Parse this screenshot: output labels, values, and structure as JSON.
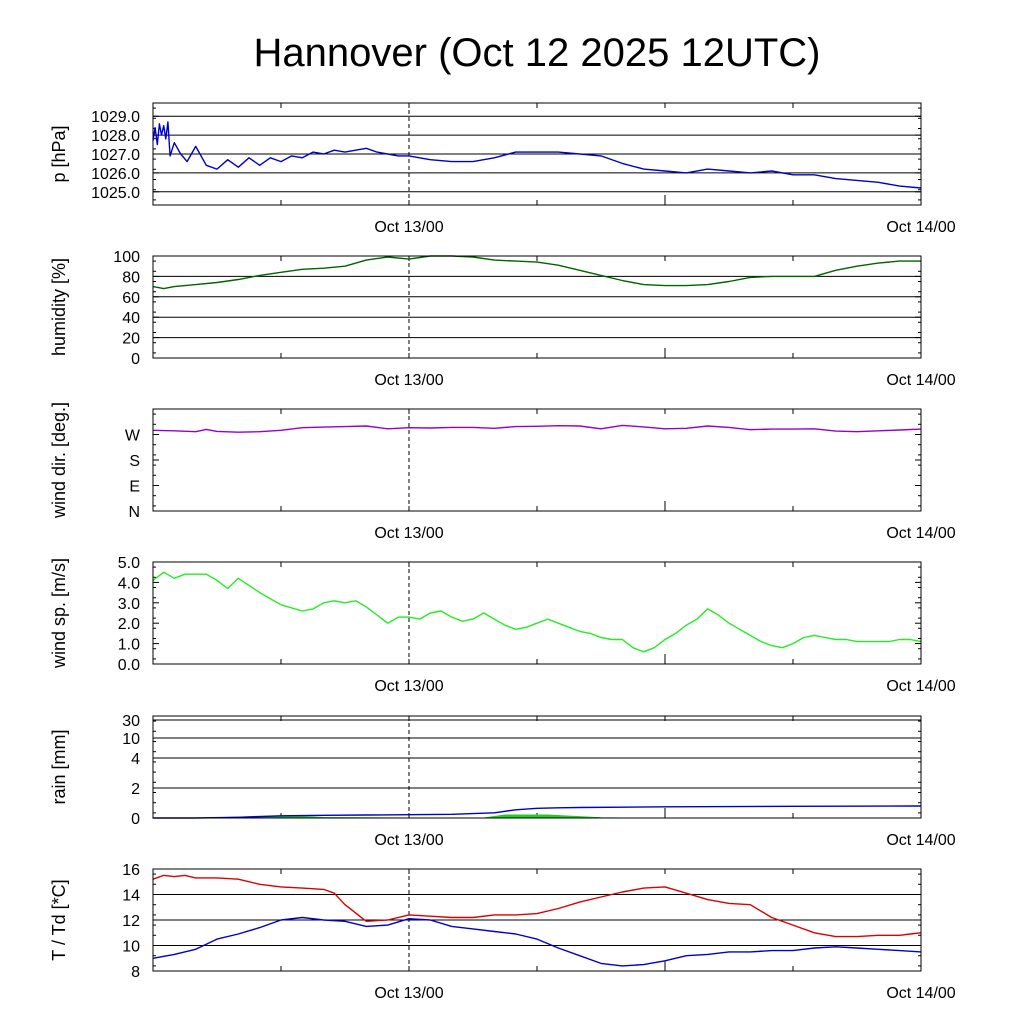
{
  "title": "Hannover (Oct 12 2025 12UTC)",
  "x_tick_labels": [
    "Oct 13/00",
    "Oct 14/00"
  ],
  "chart_data": [
    {
      "id": "pressure",
      "type": "line",
      "ylabel": "p [hPa]",
      "ylim": [
        1024.3,
        1029.7
      ],
      "yticks": [
        1025.0,
        1026.0,
        1027.0,
        1028.0,
        1029.0
      ],
      "ytick_labels": [
        "1025.0",
        "1026.0",
        "1027.0",
        "1028.0",
        "1029.0"
      ],
      "grid": true,
      "series": [
        {
          "color": "#0000cc",
          "x": [
            0,
            0.1,
            0.2,
            0.3,
            0.4,
            0.5,
            0.6,
            0.7,
            0.8,
            1.0,
            1.3,
            1.6,
            2,
            2.5,
            3,
            3.5,
            4,
            4.5,
            5,
            5.5,
            6,
            6.5,
            7,
            7.5,
            8,
            8.5,
            9,
            9.5,
            10,
            10.5,
            11,
            11.5,
            12,
            13,
            14,
            15,
            16,
            17,
            18,
            19,
            20,
            21,
            22,
            23,
            24,
            25,
            26,
            27,
            28,
            29,
            30,
            31,
            32,
            33,
            34,
            35,
            36
          ],
          "values": [
            1027.7,
            1028.4,
            1027.5,
            1028.6,
            1028.0,
            1028.5,
            1027.8,
            1028.7,
            1026.9,
            1027.6,
            1027.0,
            1026.6,
            1027.4,
            1026.4,
            1026.2,
            1026.7,
            1026.3,
            1026.8,
            1026.4,
            1026.8,
            1026.6,
            1026.9,
            1026.8,
            1027.1,
            1027.0,
            1027.2,
            1027.1,
            1027.2,
            1027.3,
            1027.1,
            1027.0,
            1026.9,
            1026.9,
            1026.7,
            1026.6,
            1026.6,
            1026.8,
            1027.1,
            1027.1,
            1027.1,
            1027.0,
            1026.9,
            1026.5,
            1026.2,
            1026.1,
            1026.0,
            1026.2,
            1026.1,
            1026.0,
            1026.1,
            1025.9,
            1025.9,
            1025.7,
            1025.6,
            1025.5,
            1025.3,
            1025.2
          ]
        }
      ]
    },
    {
      "id": "humidity",
      "type": "line",
      "ylabel": "humidity [%]",
      "ylim": [
        0,
        100
      ],
      "yticks": [
        0,
        20,
        40,
        60,
        80,
        100
      ],
      "ytick_labels": [
        "0",
        "20",
        "40",
        "60",
        "80",
        "100"
      ],
      "grid": true,
      "series": [
        {
          "color": "#006400",
          "x": [
            0,
            0.5,
            1,
            2,
            3,
            4,
            5,
            6,
            7,
            8,
            9,
            10,
            11,
            12,
            13,
            14,
            15,
            16,
            17,
            18,
            19,
            20,
            21,
            22,
            23,
            24,
            25,
            26,
            27,
            28,
            29,
            30,
            31,
            32,
            33,
            34,
            35,
            36
          ],
          "values": [
            70,
            68,
            70,
            72,
            74,
            77,
            81,
            84,
            87,
            88,
            90,
            96,
            99,
            97,
            100,
            100,
            99,
            96,
            95,
            94,
            91,
            86,
            81,
            76,
            72,
            71,
            71,
            72,
            75,
            79,
            80,
            80,
            80,
            86,
            90,
            93,
            95,
            95
          ]
        }
      ]
    },
    {
      "id": "wind_direction",
      "type": "line",
      "ylabel": "wind dir. [deg.]",
      "ylim": [
        0,
        360
      ],
      "yticks": [
        0,
        90,
        180,
        270
      ],
      "ytick_labels": [
        "N",
        "E",
        "S",
        "W"
      ],
      "grid": false,
      "series": [
        {
          "color": "#9400d3",
          "x": [
            0,
            1,
            2,
            2.5,
            3,
            4,
            5,
            6,
            7,
            8,
            9,
            10,
            11,
            12,
            13,
            14,
            15,
            16,
            17,
            18,
            19,
            20,
            21,
            22,
            23,
            24,
            25,
            26,
            27,
            28,
            29,
            30,
            31,
            32,
            33,
            34,
            35,
            36
          ],
          "values": [
            285,
            283,
            280,
            288,
            281,
            278,
            280,
            285,
            294,
            296,
            298,
            300,
            290,
            294,
            293,
            295,
            295,
            292,
            298,
            299,
            301,
            300,
            290,
            302,
            297,
            290,
            292,
            300,
            295,
            287,
            289,
            289,
            290,
            282,
            280,
            283,
            286,
            289
          ]
        }
      ]
    },
    {
      "id": "wind_speed",
      "type": "line",
      "ylabel": "wind sp. [m/s]",
      "ylim": [
        0,
        5
      ],
      "yticks": [
        0,
        1,
        2,
        3,
        4,
        5
      ],
      "ytick_labels": [
        "0.0",
        "1.0",
        "2.0",
        "3.0",
        "4.0",
        "5.0"
      ],
      "grid": false,
      "series": [
        {
          "color": "#22ee22",
          "x": [
            0,
            0.5,
            1,
            1.5,
            2,
            2.5,
            3,
            3.5,
            4,
            5,
            6,
            7,
            7.5,
            8,
            8.5,
            9,
            9.5,
            10,
            10.5,
            11,
            11.5,
            12,
            12.5,
            13,
            13.5,
            14,
            14.5,
            15,
            15.5,
            16,
            16.5,
            17,
            17.5,
            18,
            18.5,
            19,
            19.5,
            20,
            20.5,
            21,
            21.5,
            22,
            22.5,
            23,
            23.5,
            24,
            24.5,
            25,
            25.5,
            26,
            26.5,
            27,
            27.5,
            28,
            28.5,
            29,
            29.5,
            30,
            30.5,
            31,
            31.5,
            32,
            32.5,
            33,
            33.5,
            34,
            34.5,
            35,
            35.5,
            36
          ],
          "values": [
            4.1,
            4.5,
            4.2,
            4.4,
            4.4,
            4.4,
            4.1,
            3.7,
            4.2,
            3.5,
            2.9,
            2.6,
            2.7,
            3.0,
            3.1,
            3.0,
            3.1,
            2.8,
            2.4,
            2.0,
            2.3,
            2.3,
            2.2,
            2.5,
            2.6,
            2.3,
            2.1,
            2.2,
            2.5,
            2.2,
            1.9,
            1.7,
            1.8,
            2.0,
            2.2,
            2.0,
            1.8,
            1.6,
            1.5,
            1.3,
            1.2,
            1.2,
            0.8,
            0.6,
            0.8,
            1.2,
            1.5,
            1.9,
            2.2,
            2.7,
            2.4,
            2.0,
            1.7,
            1.4,
            1.1,
            0.9,
            0.8,
            1.0,
            1.3,
            1.4,
            1.3,
            1.2,
            1.2,
            1.1,
            1.1,
            1.1,
            1.1,
            1.2,
            1.2,
            1.1
          ]
        }
      ]
    },
    {
      "id": "rain",
      "type": "area",
      "ylabel": "rain [mm]",
      "ylim": [
        0,
        30
      ],
      "yticks": [
        0,
        2,
        4,
        10,
        30
      ],
      "ytick_labels": [
        "0",
        "2",
        "4",
        "10",
        "30"
      ],
      "yscale": "nonlinear",
      "grid": true,
      "series": [
        {
          "color": "#22cc22",
          "x": [
            3,
            5,
            7,
            8,
            12,
            15.5,
            16.5,
            18.5,
            21,
            22
          ],
          "values": [
            0.02,
            0.1,
            0.1,
            0.03,
            0,
            0,
            0.2,
            0.2,
            0.02,
            0
          ]
        },
        {
          "color": "#0000cc",
          "x": [
            0,
            2,
            4,
            6,
            8,
            10,
            12,
            14,
            16,
            17,
            18,
            19,
            20,
            24,
            30,
            36
          ],
          "values": [
            0,
            0,
            0.05,
            0.15,
            0.18,
            0.2,
            0.22,
            0.25,
            0.35,
            0.55,
            0.65,
            0.68,
            0.7,
            0.75,
            0.78,
            0.8
          ]
        }
      ]
    },
    {
      "id": "temperature",
      "type": "line",
      "ylabel": "T / Td [*C]",
      "ylim": [
        8,
        16
      ],
      "yticks": [
        8,
        10,
        12,
        14,
        16
      ],
      "ytick_labels": [
        "8",
        "10",
        "12",
        "14",
        "16"
      ],
      "grid": true,
      "series": [
        {
          "color": "#dd0000",
          "x": [
            0,
            0.5,
            1,
            1.5,
            2,
            3,
            4,
            5,
            6,
            7,
            8,
            8.5,
            9,
            10,
            11,
            12,
            13,
            14,
            15,
            16,
            17,
            18,
            19,
            20,
            21,
            22,
            23,
            24,
            25,
            26,
            27,
            28,
            29,
            30,
            31,
            32,
            33,
            34,
            35,
            35.5,
            36
          ],
          "values": [
            15.2,
            15.5,
            15.4,
            15.5,
            15.3,
            15.3,
            15.2,
            14.8,
            14.6,
            14.5,
            14.4,
            14.1,
            13.2,
            11.9,
            12.0,
            12.4,
            12.3,
            12.2,
            12.2,
            12.4,
            12.4,
            12.5,
            12.9,
            13.4,
            13.8,
            14.2,
            14.5,
            14.6,
            14.1,
            13.6,
            13.3,
            13.2,
            12.2,
            11.6,
            11.0,
            10.7,
            10.7,
            10.8,
            10.8,
            10.9,
            11.0
          ]
        },
        {
          "color": "#0000cc",
          "x": [
            0,
            1,
            2,
            3,
            4,
            5,
            6,
            7,
            8,
            9,
            10,
            11,
            12,
            13,
            14,
            15,
            16,
            17,
            18,
            19,
            20,
            21,
            22,
            23,
            24,
            25,
            26,
            27,
            28,
            29,
            30,
            31,
            32,
            33,
            34,
            35,
            36
          ],
          "values": [
            9.0,
            9.3,
            9.7,
            10.5,
            10.9,
            11.4,
            12.0,
            12.2,
            12.0,
            11.9,
            11.5,
            11.6,
            12.1,
            12.0,
            11.5,
            11.3,
            11.1,
            10.9,
            10.5,
            9.8,
            9.2,
            8.6,
            8.4,
            8.5,
            8.8,
            9.2,
            9.3,
            9.5,
            9.5,
            9.6,
            9.6,
            9.8,
            9.9,
            9.8,
            9.7,
            9.6,
            9.5
          ]
        }
      ]
    }
  ]
}
